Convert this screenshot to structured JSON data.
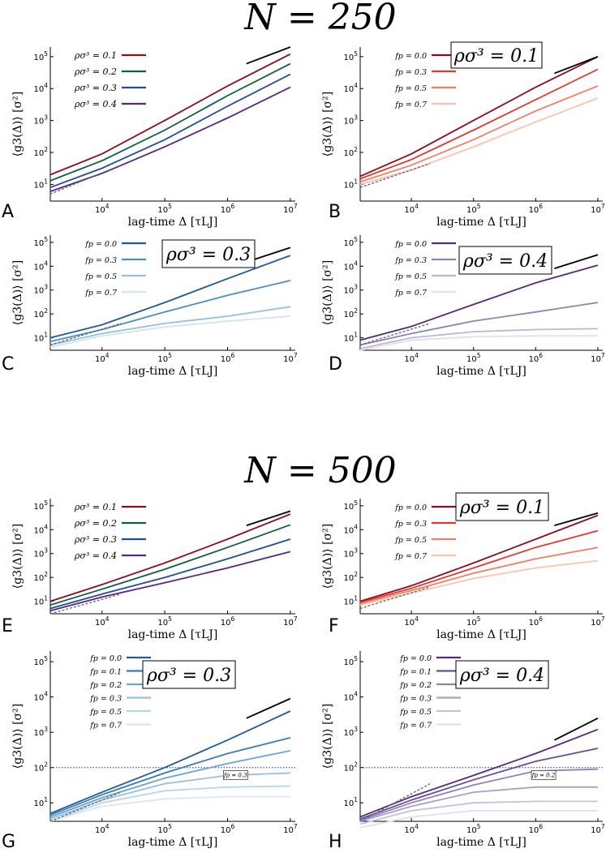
{
  "figure": {
    "top_title": "N = 250",
    "middle_title": "N = 500"
  },
  "chart_data": [
    {
      "panel": "A",
      "type": "line",
      "log_x": true,
      "log_y": true,
      "xlim": [
        1500,
        12000000
      ],
      "ylim": [
        3,
        200000
      ],
      "xlabel": "lag-time Δ [τLJ]",
      "ylabel": "⟨g3(Δ)⟩ [σ²]",
      "x_ticks": [
        "10^4",
        "10^5",
        "10^6",
        "10^7"
      ],
      "y_ticks": [
        "10^1",
        "10^2",
        "10^3",
        "10^4",
        "10^5"
      ],
      "box_label": "",
      "ref_slope_solid": {
        "x": [
          2000000,
          10000000
        ],
        "y": [
          60000,
          200000
        ]
      },
      "ref_slope_dashed": {
        "x": [
          1500,
          20000
        ],
        "y": [
          5,
          40
        ]
      },
      "series": [
        {
          "name": "ρσ³ = 0.1",
          "color": "#8b0d1f",
          "x": [
            1500,
            10000,
            100000,
            1000000,
            10000000
          ],
          "y": [
            20,
            90,
            1000,
            12000,
            120000
          ]
        },
        {
          "name": "ρσ³ = 0.2",
          "color": "#0e5e3f",
          "x": [
            1500,
            10000,
            100000,
            1000000,
            10000000
          ],
          "y": [
            13,
            55,
            500,
            6000,
            60000
          ]
        },
        {
          "name": "ρσ³ = 0.3",
          "color": "#1f4e97",
          "x": [
            1500,
            10000,
            100000,
            1000000,
            10000000
          ],
          "y": [
            8,
            32,
            250,
            2800,
            28000
          ]
        },
        {
          "name": "ρσ³ = 0.4",
          "color": "#55287f",
          "x": [
            1500,
            10000,
            100000,
            1000000,
            10000000
          ],
          "y": [
            6,
            22,
            150,
            1200,
            11000
          ]
        }
      ]
    },
    {
      "panel": "B",
      "type": "line",
      "log_x": true,
      "log_y": true,
      "xlim": [
        1500,
        12000000
      ],
      "ylim": [
        3,
        200000
      ],
      "xlabel": "lag-time Δ [τLJ]",
      "ylabel": "⟨g3(Δ)⟩ [σ²]",
      "x_ticks": [
        "10^4",
        "10^5",
        "10^6",
        "10^7"
      ],
      "y_ticks": [
        "10^1",
        "10^2",
        "10^3",
        "10^4",
        "10^5"
      ],
      "box_label": "ρσ³ = 0.1",
      "ref_slope_solid": {
        "x": [
          2000000,
          10000000
        ],
        "y": [
          30000,
          100000
        ]
      },
      "ref_slope_dashed": {
        "x": [
          1500,
          20000
        ],
        "y": [
          8,
          45
        ]
      },
      "series": [
        {
          "name": "fp = 0.0",
          "color": "#8b0d1f",
          "x": [
            1500,
            10000,
            100000,
            1000000,
            10000000
          ],
          "y": [
            18,
            90,
            1000,
            11000,
            100000
          ]
        },
        {
          "name": "fp = 0.3",
          "color": "#de3a2f",
          "x": [
            1500,
            10000,
            100000,
            1000000,
            10000000
          ],
          "y": [
            15,
            60,
            500,
            4500,
            40000
          ]
        },
        {
          "name": "fp = 0.5",
          "color": "#f37d62",
          "x": [
            1500,
            10000,
            100000,
            1000000,
            10000000
          ],
          "y": [
            12,
            40,
            250,
            2000,
            12000
          ]
        },
        {
          "name": "fp = 0.7",
          "color": "#fbc2ac",
          "x": [
            1500,
            10000,
            100000,
            1000000,
            10000000
          ],
          "y": [
            10,
            28,
            150,
            900,
            5000
          ]
        }
      ]
    },
    {
      "panel": "C",
      "type": "line",
      "log_x": true,
      "log_y": true,
      "xlim": [
        1500,
        12000000
      ],
      "ylim": [
        3,
        200000
      ],
      "xlabel": "lag-time Δ [τLJ]",
      "ylabel": "⟨g3(Δ)⟩ [σ²]",
      "x_ticks": [
        "10^4",
        "10^5",
        "10^6",
        "10^7"
      ],
      "y_ticks": [
        "10^1",
        "10^2",
        "10^3",
        "10^4",
        "10^5"
      ],
      "box_label": "ρσ³ = 0.3",
      "ref_slope_solid": {
        "x": [
          2000000,
          10000000
        ],
        "y": [
          15000,
          60000
        ]
      },
      "ref_slope_dashed": {
        "x": [
          1500,
          20000
        ],
        "y": [
          5,
          40
        ]
      },
      "series": [
        {
          "name": "fp = 0.0",
          "color": "#1f5a9a",
          "x": [
            1500,
            10000,
            100000,
            1000000,
            10000000
          ],
          "y": [
            10,
            35,
            300,
            3000,
            28000
          ]
        },
        {
          "name": "fp = 0.3",
          "color": "#4a8fc4",
          "x": [
            1500,
            10000,
            100000,
            1000000,
            10000000
          ],
          "y": [
            7,
            22,
            120,
            600,
            2500
          ]
        },
        {
          "name": "fp = 0.5",
          "color": "#93c0df",
          "x": [
            1500,
            10000,
            100000,
            1000000,
            10000000
          ],
          "y": [
            5,
            15,
            40,
            80,
            200
          ]
        },
        {
          "name": "fp = 0.7",
          "color": "#d0e4f2",
          "x": [
            1500,
            10000,
            100000,
            1000000,
            10000000
          ],
          "y": [
            4,
            12,
            28,
            50,
            80
          ]
        }
      ]
    },
    {
      "panel": "D",
      "type": "line",
      "log_x": true,
      "log_y": true,
      "xlim": [
        1500,
        12000000
      ],
      "ylim": [
        3,
        200000
      ],
      "xlabel": "lag-time Δ [τLJ]",
      "ylabel": "⟨g3(Δ)⟩ [σ²]",
      "x_ticks": [
        "10^4",
        "10^5",
        "10^6",
        "10^7"
      ],
      "y_ticks": [
        "10^1",
        "10^2",
        "10^3",
        "10^4",
        "10^5"
      ],
      "box_label": "ρσ³ = 0.4",
      "ref_slope_solid": {
        "x": [
          2000000,
          10000000
        ],
        "y": [
          8000,
          30000
        ]
      },
      "ref_slope_dashed": {
        "x": [
          1500,
          20000
        ],
        "y": [
          5,
          40
        ]
      },
      "series": [
        {
          "name": "fp = 0.0",
          "color": "#55287f",
          "x": [
            1500,
            10000,
            100000,
            1000000,
            10000000
          ],
          "y": [
            8,
            30,
            250,
            2000,
            11000
          ]
        },
        {
          "name": "fp = 0.3",
          "color": "#8a84b6",
          "x": [
            1500,
            10000,
            100000,
            1000000,
            10000000
          ],
          "y": [
            5,
            15,
            50,
            120,
            300
          ]
        },
        {
          "name": "fp = 0.5",
          "color": "#bab6d8",
          "x": [
            1500,
            10000,
            100000,
            1000000,
            10000000
          ],
          "y": [
            3.5,
            10,
            18,
            22,
            24
          ]
        },
        {
          "name": "fp = 0.7",
          "color": "#e0def0",
          "x": [
            1500,
            10000,
            100000,
            1000000,
            10000000
          ],
          "y": [
            3,
            8,
            11,
            12,
            12
          ]
        }
      ]
    },
    {
      "panel": "E",
      "type": "line",
      "log_x": true,
      "log_y": true,
      "xlim": [
        1500,
        12000000
      ],
      "ylim": [
        3,
        200000
      ],
      "xlabel": "lag-time Δ [τLJ]",
      "ylabel": "⟨g3(Δ)⟩ [σ²]",
      "x_ticks": [
        "10^4",
        "10^5",
        "10^6",
        "10^7"
      ],
      "y_ticks": [
        "10^1",
        "10^2",
        "10^3",
        "10^4",
        "10^5"
      ],
      "box_label": "",
      "ref_slope_solid": {
        "x": [
          2000000,
          10000000
        ],
        "y": [
          15000,
          60000
        ]
      },
      "ref_slope_dashed": {
        "x": [
          1500,
          20000
        ],
        "y": [
          3,
          20
        ]
      },
      "series": [
        {
          "name": "ρσ³ = 0.1",
          "color": "#8b0d1f",
          "x": [
            1500,
            10000,
            100000,
            1000000,
            10000000
          ],
          "y": [
            10,
            50,
            400,
            4000,
            45000
          ]
        },
        {
          "name": "ρσ³ = 0.2",
          "color": "#0e5e3f",
          "x": [
            1500,
            10000,
            100000,
            1000000,
            10000000
          ],
          "y": [
            7,
            32,
            220,
            1800,
            16000
          ]
        },
        {
          "name": "ρσ³ = 0.3",
          "color": "#1f4e97",
          "x": [
            1500,
            10000,
            100000,
            1000000,
            10000000
          ],
          "y": [
            5,
            20,
            100,
            600,
            4000
          ]
        },
        {
          "name": "ρσ³ = 0.4",
          "color": "#55287f",
          "x": [
            1500,
            10000,
            100000,
            1000000,
            10000000
          ],
          "y": [
            4,
            15,
            60,
            250,
            1200
          ]
        }
      ]
    },
    {
      "panel": "F",
      "type": "line",
      "log_x": true,
      "log_y": true,
      "xlim": [
        1500,
        12000000
      ],
      "ylim": [
        3,
        200000
      ],
      "xlabel": "lag-time Δ [τLJ]",
      "ylabel": "⟨g3(Δ)⟩ [σ²]",
      "x_ticks": [
        "10^4",
        "10^5",
        "10^6",
        "10^7"
      ],
      "y_ticks": [
        "10^1",
        "10^2",
        "10^3",
        "10^4",
        "10^5"
      ],
      "box_label": "ρσ³ = 0.1",
      "ref_slope_solid": {
        "x": [
          2000000,
          10000000
        ],
        "y": [
          15000,
          50000
        ]
      },
      "ref_slope_dashed": {
        "x": [
          1500,
          20000
        ],
        "y": [
          5,
          40
        ]
      },
      "series": [
        {
          "name": "fp = 0.0",
          "color": "#8b0d1f",
          "x": [
            1500,
            10000,
            100000,
            1000000,
            10000000
          ],
          "y": [
            10,
            45,
            400,
            4000,
            40000
          ]
        },
        {
          "name": "fp = 0.3",
          "color": "#de3a2f",
          "x": [
            1500,
            10000,
            100000,
            1000000,
            10000000
          ],
          "y": [
            9,
            35,
            250,
            1800,
            9000
          ]
        },
        {
          "name": "fp = 0.5",
          "color": "#f37d62",
          "x": [
            1500,
            10000,
            100000,
            1000000,
            10000000
          ],
          "y": [
            8,
            28,
            150,
            600,
            1800
          ]
        },
        {
          "name": "fp = 0.7",
          "color": "#fbc2ac",
          "x": [
            1500,
            10000,
            100000,
            1000000,
            10000000
          ],
          "y": [
            7,
            22,
            90,
            250,
            500
          ]
        }
      ]
    },
    {
      "panel": "G",
      "type": "line",
      "log_x": true,
      "log_y": true,
      "xlim": [
        1500,
        12000000
      ],
      "ylim": [
        3,
        200000
      ],
      "xlabel": "lag-time Δ [τLJ]",
      "ylabel": "⟨g3(Δ)⟩ [σ²]",
      "x_ticks": [
        "10^4",
        "10^5",
        "10^6",
        "10^7"
      ],
      "y_ticks": [
        "10^1",
        "10^2",
        "10^3",
        "10^4",
        "10^5"
      ],
      "box_label": "ρσ³ = 0.3",
      "small_box_label": "fp = 0.3",
      "h_line_y": 100,
      "ref_slope_solid": {
        "x": [
          2000000,
          10000000
        ],
        "y": [
          2500,
          9000
        ]
      },
      "ref_slope_dashed": {
        "x": [
          1500,
          20000
        ],
        "y": [
          3,
          20
        ]
      },
      "series": [
        {
          "name": "fp = 0.0",
          "color": "#1f5a9a",
          "x": [
            1500,
            10000,
            100000,
            1000000,
            10000000
          ],
          "y": [
            5,
            20,
            100,
            600,
            4000
          ]
        },
        {
          "name": "fp = 0.1",
          "color": "#3a7ab5",
          "x": [
            1500,
            10000,
            100000,
            1000000,
            10000000
          ],
          "y": [
            4.5,
            17,
            70,
            250,
            700
          ]
        },
        {
          "name": "fp = 0.2",
          "color": "#6aa4d1",
          "x": [
            1500,
            10000,
            100000,
            1000000,
            10000000
          ],
          "y": [
            4,
            14,
            50,
            130,
            300
          ]
        },
        {
          "name": "fp = 0.3",
          "color": "#93c0df",
          "x": [
            1500,
            10000,
            100000,
            1000000,
            10000000
          ],
          "y": [
            3.5,
            12,
            35,
            60,
            70
          ]
        },
        {
          "name": "fp = 0.5",
          "color": "#b8d5eb",
          "x": [
            1500,
            10000,
            100000,
            1000000,
            10000000
          ],
          "y": [
            3,
            10,
            22,
            28,
            30
          ]
        },
        {
          "name": "fp = 0.7",
          "color": "#d7e7f3",
          "x": [
            1500,
            10000,
            100000,
            1000000,
            10000000
          ],
          "y": [
            3,
            8,
            13,
            15,
            15
          ]
        }
      ]
    },
    {
      "panel": "H",
      "type": "line",
      "log_x": true,
      "log_y": true,
      "xlim": [
        1500,
        12000000
      ],
      "ylim": [
        3,
        200000
      ],
      "xlabel": "lag-time Δ [τLJ]",
      "ylabel": "⟨g3(Δ)⟩ [σ²]",
      "x_ticks": [
        "10^4",
        "10^5",
        "10^6",
        "10^7"
      ],
      "y_ticks": [
        "10^1",
        "10^2",
        "10^3",
        "10^4",
        "10^5"
      ],
      "box_label": "ρσ³ = 0.4",
      "small_box_label": "fp = 0.2",
      "h_line_y": 100,
      "ref_slope_solid": {
        "x": [
          2000000,
          10000000
        ],
        "y": [
          600,
          2500
        ]
      },
      "ref_slope_dashed": {
        "x": [
          1500,
          20000
        ],
        "y": [
          3,
          35
        ]
      },
      "series": [
        {
          "name": "fp = 0.0",
          "color": "#55287f",
          "x": [
            1500,
            10000,
            100000,
            1000000,
            10000000
          ],
          "y": [
            4,
            15,
            60,
            250,
            1200
          ]
        },
        {
          "name": "fp = 0.1",
          "color": "#6a4c98",
          "x": [
            1500,
            10000,
            100000,
            1000000,
            10000000
          ],
          "y": [
            3.5,
            12,
            45,
            150,
            350
          ]
        },
        {
          "name": "fp = 0.2",
          "color": "#8a84b6",
          "x": [
            1500,
            10000,
            100000,
            1000000,
            10000000
          ],
          "y": [
            3.2,
            10,
            32,
            80,
            90
          ]
        },
        {
          "name": "fp = 0.3",
          "color": "#a5a1c9",
          "x": [
            1500,
            10000,
            100000,
            1000000,
            10000000
          ],
          "y": [
            3,
            8,
            20,
            28,
            28
          ]
        },
        {
          "name": "fp = 0.5",
          "color": "#c4c1dd",
          "x": [
            1500,
            10000,
            100000,
            1000000,
            10000000
          ],
          "y": [
            2.5,
            6,
            10,
            11,
            11
          ]
        },
        {
          "name": "fp = 0.7",
          "color": "#e0def0",
          "x": [
            1500,
            10000,
            100000,
            1000000,
            10000000
          ],
          "y": [
            2,
            4,
            6,
            6,
            6
          ]
        }
      ]
    }
  ]
}
